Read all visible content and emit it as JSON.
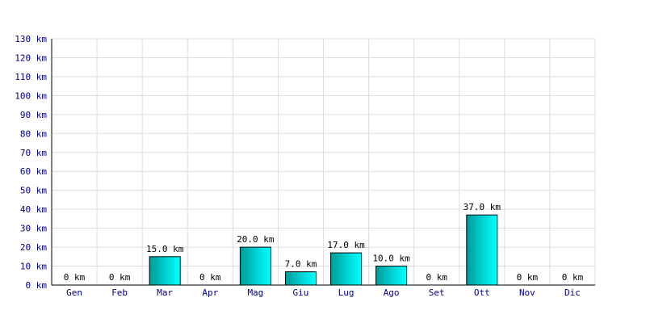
{
  "chart_data": {
    "type": "bar",
    "title": "",
    "xlabel": "",
    "ylabel": "",
    "unit": "km",
    "categories": [
      "Gen",
      "Feb",
      "Mar",
      "Apr",
      "Mag",
      "Giu",
      "Lug",
      "Ago",
      "Set",
      "Ott",
      "Nov",
      "Dic"
    ],
    "values": [
      0,
      0,
      15,
      0,
      20,
      7,
      17,
      10,
      0,
      37,
      0,
      0
    ],
    "data_labels": [
      "0 km",
      "0 km",
      "15.0 km",
      "0 km",
      "20.0 km",
      "7.0 km",
      "17.0 km",
      "10.0 km",
      "0 km",
      "37.0 km",
      "0 km",
      "0 km"
    ],
    "y_ticks": [
      "0 km",
      "10 km",
      "20 km",
      "30 km",
      "40 km",
      "50 km",
      "60 km",
      "70 km",
      "80 km",
      "90 km",
      "100 km",
      "110 km",
      "120 km",
      "130 km"
    ],
    "ylim": [
      0,
      130
    ],
    "grid": true,
    "colors": {
      "bar_start": "#009999",
      "bar_mid": "#00d5d5",
      "bar_end": "#00ffff",
      "bar_stroke": "#000000",
      "grid": "#dddddd",
      "tick_text": "#000080",
      "axis": "#000000"
    }
  }
}
